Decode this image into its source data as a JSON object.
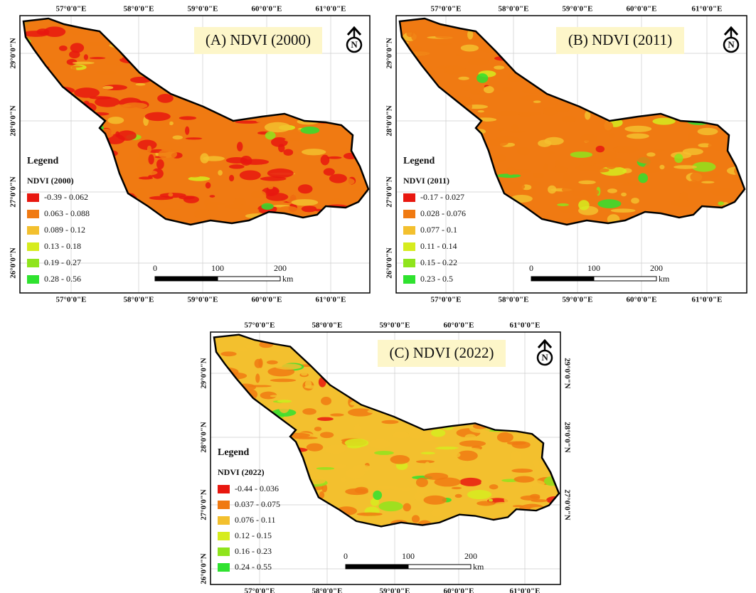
{
  "panels": [
    {
      "title": "(A) NDVI (2000)",
      "legend_heading": "Legend",
      "legend_title": "NDVI (2000)",
      "legend": [
        {
          "label": "-0.39 - 0.062",
          "color": "#e8170f"
        },
        {
          "label": "0.063 - 0.088",
          "color": "#f07a12"
        },
        {
          "label": "0.089 - 0.12",
          "color": "#f3c02e"
        },
        {
          "label": "0.13 - 0.18",
          "color": "#d6ec1e"
        },
        {
          "label": "0.19 - 0.27",
          "color": "#8fe41c"
        },
        {
          "label": "0.28 - 0.56",
          "color": "#2fe22f"
        }
      ],
      "top_ticks": [
        "57°0'0\"E",
        "58°0'0\"E",
        "59°0'0\"E",
        "60°0'0\"E",
        "61°0'0\"E"
      ],
      "bottom_ticks": [
        "57°0'0\"E",
        "58°0'0\"E",
        "59°0'0\"E",
        "60°0'0\"E",
        "61°0'0\"E"
      ],
      "left_ticks": [
        "29°0'0\"N",
        "28°0'0\"N",
        "27°0'0\"N",
        "26°0'0\"N"
      ],
      "scale_labels": [
        "0",
        "100",
        "200"
      ],
      "scale_unit": "km",
      "north": "N"
    },
    {
      "title": "(B) NDVI (2011)",
      "legend_heading": "Legend",
      "legend_title": "NDVI (2011)",
      "legend": [
        {
          "label": "-0.17 - 0.027",
          "color": "#e8170f"
        },
        {
          "label": "0.028 - 0.076",
          "color": "#f07a12"
        },
        {
          "label": "0.077 - 0.1",
          "color": "#f3c02e"
        },
        {
          "label": "0.11 - 0.14",
          "color": "#d6ec1e"
        },
        {
          "label": "0.15 - 0.22",
          "color": "#8fe41c"
        },
        {
          "label": "0.23 - 0.5",
          "color": "#2fe22f"
        }
      ],
      "top_ticks": [
        "57°0'0\"E",
        "58°0'0\"E",
        "59°0'0\"E",
        "60°0'0\"E",
        "61°0'0\"E"
      ],
      "bottom_ticks": [
        "57°0'0\"E",
        "58°0'0\"E",
        "59°0'0\"E",
        "60°0'0\"E",
        "61°0'0\"E"
      ],
      "left_ticks": [
        "29°0'0\"N",
        "28°0'0\"N",
        "27°0'0\"N",
        "26°0'0\"N"
      ],
      "scale_labels": [
        "0",
        "100",
        "200"
      ],
      "scale_unit": "km",
      "north": "N"
    },
    {
      "title": "(C) NDVI (2022)",
      "legend_heading": "Legend",
      "legend_title": "NDVI (2022)",
      "legend": [
        {
          "label": "-0.44 - 0.036",
          "color": "#e8170f"
        },
        {
          "label": "0.037 - 0.075",
          "color": "#f07a12"
        },
        {
          "label": "0.076 - 0.11",
          "color": "#f3c02e"
        },
        {
          "label": "0.12 - 0.15",
          "color": "#d6ec1e"
        },
        {
          "label": "0.16 - 0.23",
          "color": "#8fe41c"
        },
        {
          "label": "0.24 - 0.55",
          "color": "#2fe22f"
        }
      ],
      "top_ticks": [
        "57°0'0\"E",
        "58°0'0\"E",
        "59°0'0\"E",
        "60°0'0\"E",
        "61°0'0\"E"
      ],
      "bottom_ticks": [
        "57°0'0\"E",
        "58°0'0\"E",
        "59°0'0\"E",
        "60°0'0\"E",
        "61°0'0\"E"
      ],
      "left_ticks": [
        "29°0'0\"N",
        "28°0'0\"N",
        "27°0'0\"N",
        "26°0'0\"N"
      ],
      "right_ticks": [
        "29°0'0\"N",
        "28°0'0\"N",
        "27°0'0\"N"
      ],
      "scale_labels": [
        "0",
        "100",
        "200"
      ],
      "scale_unit": "km",
      "north": "N"
    }
  ]
}
